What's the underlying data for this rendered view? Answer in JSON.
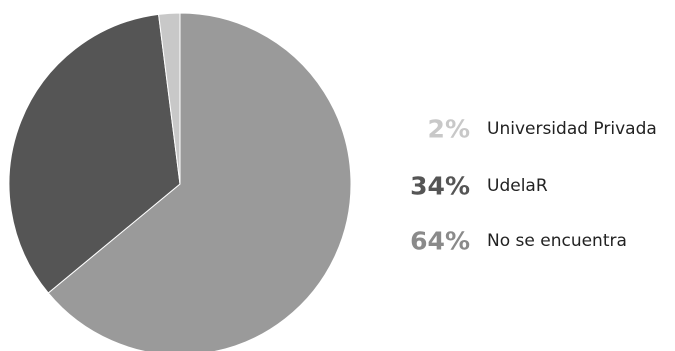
{
  "chart_data": {
    "type": "pie",
    "slices": [
      {
        "label": "No se encuentra",
        "percent_label": "64%",
        "value": 64,
        "color": "#9a9a9a"
      },
      {
        "label": "UdelaR",
        "percent_label": "34%",
        "value": 34,
        "color": "#555555"
      },
      {
        "label": "Universidad Privada",
        "percent_label": "2%",
        "value": 2,
        "color": "#c8c8c8"
      }
    ],
    "legend_order": [
      "Universidad Privada",
      "UdelaR",
      "No se encuentra"
    ],
    "legend_placement": "right",
    "start_angle": "12 o'clock",
    "direction": "clockwise"
  }
}
